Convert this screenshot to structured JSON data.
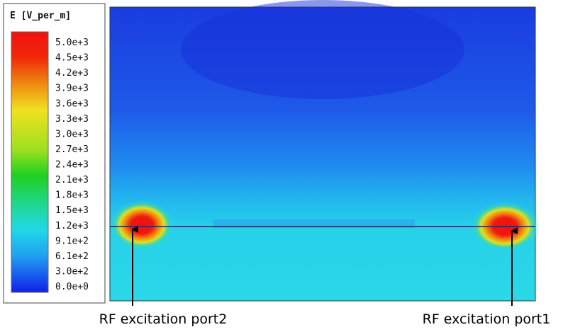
{
  "legend": {
    "title": "E [V_per_m]",
    "labels": [
      "5.0e+3",
      "4.5e+3",
      "4.2e+3",
      "3.9e+3",
      "3.6e+3",
      "3.3e+3",
      "3.0e+3",
      "2.7e+3",
      "2.4e+3",
      "2.1e+3",
      "1.8e+3",
      "1.5e+3",
      "1.2e+3",
      "9.1e+2",
      "6.1e+2",
      "3.0e+2",
      "0.0e+0"
    ]
  },
  "annotations": [
    {
      "label": "RF excitation port2"
    },
    {
      "label": "RF excitation port1"
    }
  ]
}
